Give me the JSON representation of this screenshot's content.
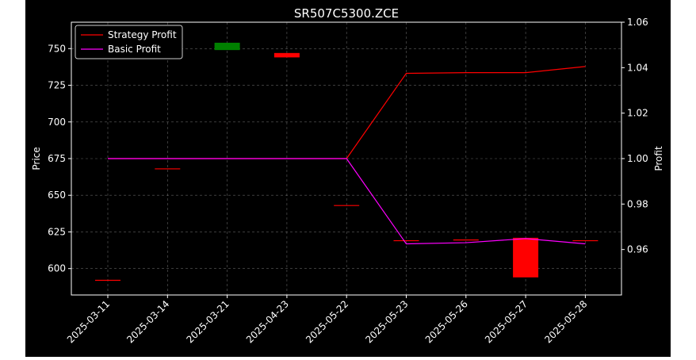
{
  "chart_data": {
    "type": "candlestick+line",
    "title": "SR507C5300.ZCE",
    "ylabel_left": "Price",
    "ylabel_right": "Profit",
    "categories": [
      "2025-03-11",
      "2025-03-14",
      "2025-03-21",
      "2025-04-23",
      "2025-05-22",
      "2025-05-23",
      "2025-05-26",
      "2025-05-27",
      "2025-05-28"
    ],
    "left_axis": {
      "ylim": [
        582,
        768
      ],
      "ticks": [
        600,
        625,
        650,
        675,
        700,
        725,
        750
      ]
    },
    "right_axis": {
      "ylim": [
        0.94,
        1.06
      ],
      "ticks": [
        "0.96",
        "0.98",
        "1.00",
        "1.02",
        "1.04",
        "1.06"
      ]
    },
    "candles": [
      {
        "open": 592,
        "close": 592
      },
      {
        "open": 668,
        "close": 668
      },
      {
        "open": 749,
        "close": 754
      },
      {
        "open": 747,
        "close": 744
      },
      {
        "open": 643,
        "close": 643
      },
      {
        "open": 619,
        "close": 619
      },
      {
        "open": 619.5,
        "close": 619.5
      },
      {
        "open": 621,
        "close": 594
      },
      {
        "open": 619,
        "close": 619
      }
    ],
    "series": [
      {
        "name": "Strategy Profit",
        "color": "#ff0000",
        "values": [
          1.0,
          1.0,
          1.0,
          1.0,
          1.0,
          1.0375,
          1.0378,
          1.0378,
          1.0405
        ]
      },
      {
        "name": "Basic Profit",
        "color": "#ff00ff",
        "values": [
          1.0,
          1.0,
          1.0,
          1.0,
          1.0,
          0.9625,
          0.963,
          0.9648,
          0.9625
        ]
      }
    ],
    "colors": {
      "up": "#008000",
      "down": "#ff0000",
      "axes": "#ffffff",
      "grid": "#b0b0b0",
      "background": "#000000"
    },
    "grid": true,
    "legend_position": "top-left"
  }
}
